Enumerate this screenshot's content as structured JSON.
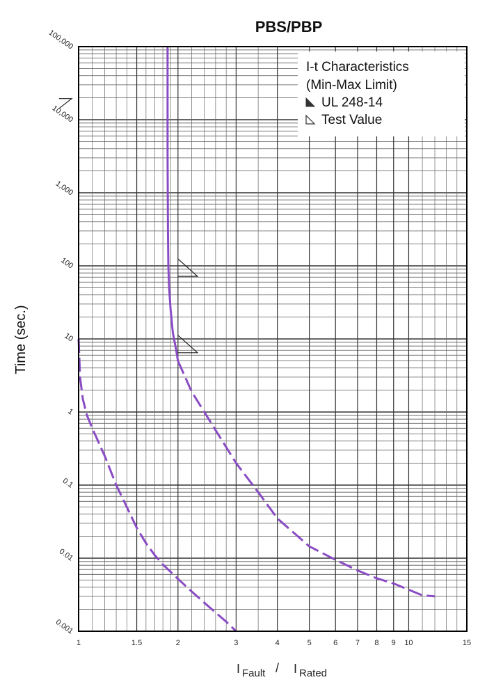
{
  "chart_data": {
    "type": "line",
    "title": "PBS/PBP",
    "ylabel": "Time (sec.)",
    "xlabel": {
      "numerator": "Fault",
      "separator": "/",
      "denominator": "Rated",
      "bar": "I"
    },
    "x_scale": "log",
    "y_scale": "log",
    "xlim": [
      1,
      15
    ],
    "ylim": [
      0.001,
      100000
    ],
    "x_ticks": [
      {
        "value": 1,
        "label": "1"
      },
      {
        "value": 1.5,
        "label": "1.5"
      },
      {
        "value": 2,
        "label": "2"
      },
      {
        "value": 3,
        "label": "3"
      },
      {
        "value": 4,
        "label": "4"
      },
      {
        "value": 5,
        "label": "5"
      },
      {
        "value": 6,
        "label": "6"
      },
      {
        "value": 7,
        "label": "7"
      },
      {
        "value": 8,
        "label": "8"
      },
      {
        "value": 9,
        "label": "9"
      },
      {
        "value": 10,
        "label": "10"
      },
      {
        "value": 15,
        "label": "15"
      }
    ],
    "y_ticks": [
      {
        "value": 100000,
        "label": "100,000"
      },
      {
        "value": 10000,
        "label": "10,000"
      },
      {
        "value": 1000,
        "label": "1,000"
      },
      {
        "value": 100,
        "label": "100"
      },
      {
        "value": 10,
        "label": "10"
      },
      {
        "value": 1,
        "label": "1"
      },
      {
        "value": 0.1,
        "label": "0.1"
      },
      {
        "value": 0.01,
        "label": "0.01"
      },
      {
        "value": 0.001,
        "label": "0.001"
      }
    ],
    "grid": true,
    "legend": {
      "position": "top-right",
      "title_lines": [
        "I-t Characteristics",
        "(Min-Max Limit)"
      ],
      "entries": [
        {
          "label": "UL 248-14",
          "marker": "filled-triangle-icon"
        },
        {
          "label": "Test Value",
          "marker": "open-triangle-icon"
        }
      ]
    },
    "curve_color": "#8a4cc4",
    "series": [
      {
        "style": "dashed",
        "points": [
          [
            1.0,
            10
          ],
          [
            1.01,
            3
          ],
          [
            1.03,
            1.5
          ],
          [
            1.06,
            0.9
          ],
          [
            1.1,
            0.6
          ],
          [
            1.2,
            0.25
          ],
          [
            1.3,
            0.1
          ],
          [
            1.4,
            0.05
          ],
          [
            1.5,
            0.026
          ],
          [
            1.6,
            0.016
          ],
          [
            1.7,
            0.011
          ],
          [
            1.8,
            0.0082
          ],
          [
            2.0,
            0.0052
          ],
          [
            2.2,
            0.0035
          ],
          [
            2.5,
            0.0021
          ],
          [
            2.8,
            0.00135
          ],
          [
            3.0,
            0.001
          ]
        ]
      },
      {
        "style": "solid",
        "points": [
          [
            1.86,
            100000
          ],
          [
            1.86,
            30000
          ],
          [
            1.86,
            3000
          ],
          [
            1.865,
            300
          ],
          [
            1.87,
            100
          ],
          [
            1.88,
            50
          ],
          [
            1.9,
            25
          ],
          [
            1.93,
            12
          ],
          [
            1.97,
            7.5
          ],
          [
            2.0,
            5
          ]
        ]
      },
      {
        "style": "dashed",
        "points": [
          [
            2.0,
            5
          ],
          [
            2.2,
            1.9
          ],
          [
            2.5,
            0.75
          ],
          [
            3.0,
            0.2
          ],
          [
            3.5,
            0.08
          ],
          [
            4.0,
            0.035
          ],
          [
            5.0,
            0.0145
          ],
          [
            6.0,
            0.0095
          ],
          [
            7.0,
            0.0068
          ],
          [
            8.0,
            0.0053
          ],
          [
            9.0,
            0.0045
          ],
          [
            10.0,
            0.0037
          ],
          [
            11.0,
            0.0031
          ],
          [
            12.0,
            0.003
          ]
        ]
      }
    ],
    "limit_markers": [
      {
        "x": 1.0,
        "y": 12000,
        "kind": "ul-limit"
      },
      {
        "x": 2.0,
        "y": 100,
        "kind": "ul-limit"
      },
      {
        "x": 2.0,
        "y": 9,
        "kind": "ul-limit"
      }
    ]
  }
}
